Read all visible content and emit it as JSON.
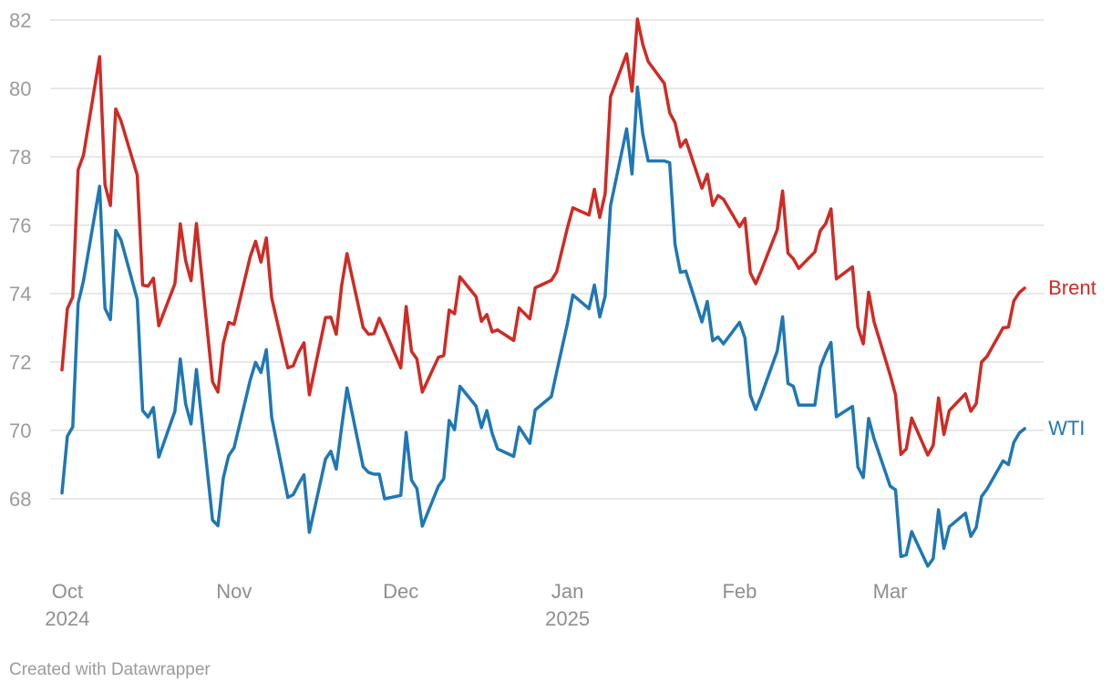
{
  "chart_data": {
    "type": "line",
    "title": "",
    "xlabel": "",
    "ylabel": "",
    "grid": "horizontal-only",
    "legend_position": "direct-labels-right-of-line-ends",
    "y_ticks": [
      68,
      70,
      72,
      74,
      76,
      78,
      80,
      82
    ],
    "y_range_shown": [
      65.9,
      82
    ],
    "x_ticks": [
      {
        "label": "Oct",
        "year": "2024",
        "date": "2024-10-01"
      },
      {
        "label": "Nov",
        "year": "",
        "date": "2024-11-01"
      },
      {
        "label": "Dec",
        "year": "",
        "date": "2024-12-02"
      },
      {
        "label": "Jan",
        "year": "2025",
        "date": "2025-01-02"
      },
      {
        "label": "Feb",
        "year": "",
        "date": "2025-02-03"
      },
      {
        "label": "Mar",
        "year": "",
        "date": "2025-03-03"
      }
    ],
    "dates": [
      "2024-09-30",
      "2024-10-01",
      "2024-10-02",
      "2024-10-03",
      "2024-10-04",
      "2024-10-07",
      "2024-10-08",
      "2024-10-09",
      "2024-10-10",
      "2024-10-11",
      "2024-10-14",
      "2024-10-15",
      "2024-10-16",
      "2024-10-17",
      "2024-10-18",
      "2024-10-21",
      "2024-10-22",
      "2024-10-23",
      "2024-10-24",
      "2024-10-25",
      "2024-10-28",
      "2024-10-29",
      "2024-10-30",
      "2024-10-31",
      "2024-11-01",
      "2024-11-04",
      "2024-11-05",
      "2024-11-06",
      "2024-11-07",
      "2024-11-08",
      "2024-11-11",
      "2024-11-12",
      "2024-11-13",
      "2024-11-14",
      "2024-11-15",
      "2024-11-18",
      "2024-11-19",
      "2024-11-20",
      "2024-11-21",
      "2024-11-22",
      "2024-11-25",
      "2024-11-26",
      "2024-11-27",
      "2024-11-28",
      "2024-11-29",
      "2024-12-02",
      "2024-12-03",
      "2024-12-04",
      "2024-12-05",
      "2024-12-06",
      "2024-12-09",
      "2024-12-10",
      "2024-12-11",
      "2024-12-12",
      "2024-12-13",
      "2024-12-16",
      "2024-12-17",
      "2024-12-18",
      "2024-12-19",
      "2024-12-20",
      "2024-12-23",
      "2024-12-24",
      "2024-12-26",
      "2024-12-27",
      "2024-12-30",
      "2024-12-31",
      "2025-01-02",
      "2025-01-03",
      "2025-01-06",
      "2025-01-07",
      "2025-01-08",
      "2025-01-09",
      "2025-01-10",
      "2025-01-13",
      "2025-01-14",
      "2025-01-15",
      "2025-01-16",
      "2025-01-17",
      "2025-01-20",
      "2025-01-21",
      "2025-01-22",
      "2025-01-23",
      "2025-01-24",
      "2025-01-27",
      "2025-01-28",
      "2025-01-29",
      "2025-01-30",
      "2025-01-31",
      "2025-02-03",
      "2025-02-04",
      "2025-02-05",
      "2025-02-06",
      "2025-02-07",
      "2025-02-10",
      "2025-02-11",
      "2025-02-12",
      "2025-02-13",
      "2025-02-14",
      "2025-02-17",
      "2025-02-18",
      "2025-02-19",
      "2025-02-20",
      "2025-02-21",
      "2025-02-24",
      "2025-02-25",
      "2025-02-26",
      "2025-02-27",
      "2025-02-28",
      "2025-03-03",
      "2025-03-04",
      "2025-03-05",
      "2025-03-06",
      "2025-03-07",
      "2025-03-10",
      "2025-03-11",
      "2025-03-12",
      "2025-03-13",
      "2025-03-14",
      "2025-03-17",
      "2025-03-18",
      "2025-03-19",
      "2025-03-20",
      "2025-03-21",
      "2025-03-24",
      "2025-03-25",
      "2025-03-26",
      "2025-03-27",
      "2025-03-28"
    ],
    "series": [
      {
        "name": "Brent",
        "color": "#ce2b24",
        "values": [
          71.77,
          73.56,
          73.9,
          77.62,
          78.05,
          80.93,
          77.18,
          76.58,
          79.4,
          79.04,
          77.46,
          74.25,
          74.22,
          74.45,
          73.06,
          74.29,
          76.04,
          74.96,
          74.38,
          76.05,
          71.42,
          71.12,
          72.55,
          73.16,
          73.1,
          75.08,
          75.53,
          74.92,
          75.63,
          73.87,
          71.83,
          71.89,
          72.28,
          72.56,
          71.04,
          73.3,
          73.31,
          72.81,
          74.23,
          75.17,
          73.01,
          72.81,
          72.83,
          73.28,
          72.94,
          71.83,
          73.62,
          72.31,
          72.09,
          71.12,
          72.14,
          72.19,
          73.52,
          73.41,
          74.49,
          73.91,
          73.19,
          73.39,
          72.88,
          72.94,
          72.63,
          73.58,
          73.26,
          74.17,
          74.39,
          74.64,
          75.93,
          76.51,
          76.3,
          77.05,
          76.23,
          76.92,
          79.76,
          81.01,
          79.92,
          82.03,
          81.29,
          80.79,
          80.15,
          79.29,
          79.0,
          78.29,
          78.5,
          77.08,
          77.49,
          76.58,
          76.87,
          76.76,
          75.96,
          76.2,
          74.61,
          74.29,
          74.66,
          75.87,
          77.0,
          75.18,
          75.02,
          74.74,
          75.22,
          75.84,
          76.04,
          76.48,
          74.43,
          74.78,
          73.02,
          72.53,
          74.04,
          73.18,
          71.62,
          71.04,
          69.3,
          69.46,
          70.36,
          69.28,
          69.56,
          70.95,
          69.88,
          70.58,
          71.07,
          70.56,
          70.78,
          72.0,
          72.16,
          73.0,
          73.02,
          73.79,
          74.03,
          74.16
        ]
      },
      {
        "name": "WTI",
        "color": "#1f77b4",
        "values": [
          68.17,
          69.83,
          70.1,
          73.71,
          74.38,
          77.14,
          73.57,
          73.24,
          75.85,
          75.56,
          73.83,
          70.58,
          70.39,
          70.67,
          69.22,
          70.56,
          72.09,
          70.77,
          70.19,
          71.78,
          67.38,
          67.21,
          68.61,
          69.26,
          69.49,
          71.47,
          71.99,
          71.69,
          72.36,
          70.38,
          68.04,
          68.12,
          68.43,
          68.7,
          67.02,
          69.16,
          69.39,
          68.87,
          70.1,
          71.24,
          68.94,
          68.77,
          68.72,
          68.72,
          68.0,
          68.1,
          69.94,
          68.54,
          68.3,
          67.2,
          68.37,
          68.59,
          70.29,
          70.02,
          71.29,
          70.71,
          70.08,
          70.58,
          69.91,
          69.46,
          69.24,
          70.1,
          69.62,
          70.6,
          70.99,
          71.72,
          73.13,
          73.96,
          73.56,
          74.25,
          73.32,
          73.92,
          76.57,
          78.82,
          77.5,
          80.04,
          78.68,
          77.88,
          77.88,
          77.83,
          75.44,
          74.62,
          74.66,
          73.17,
          73.77,
          72.62,
          72.73,
          72.53,
          73.16,
          72.7,
          71.03,
          70.61,
          71.0,
          72.32,
          73.32,
          71.37,
          71.29,
          70.74,
          70.74,
          71.85,
          72.25,
          72.57,
          70.4,
          70.7,
          68.93,
          68.62,
          70.35,
          69.76,
          68.37,
          68.26,
          66.31,
          66.36,
          67.04,
          66.03,
          66.25,
          67.68,
          66.55,
          67.18,
          67.58,
          66.9,
          67.16,
          68.07,
          68.28,
          69.11,
          69.0,
          69.65,
          69.92,
          70.05
        ]
      }
    ]
  },
  "colors": {
    "grid_line": "#e0e0e0",
    "y_tick_label": "#9b9b9b",
    "x_tick_label": "#8f8f8f",
    "footer_text": "#9b9b9b"
  },
  "footer": {
    "credit": "Created with Datawrapper"
  }
}
